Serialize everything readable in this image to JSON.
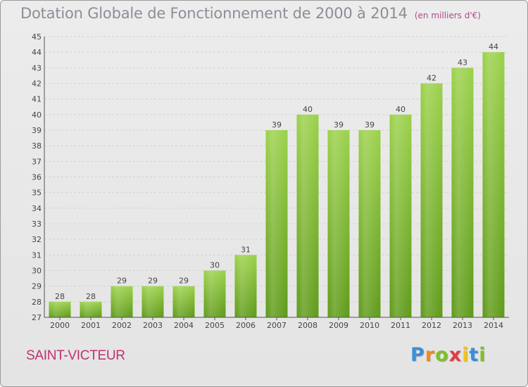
{
  "chart_data": {
    "type": "bar",
    "title": "Dotation Globale de Fonctionnement de 2000 à 2014",
    "subtitle": "(en milliers d'€)",
    "categories": [
      "2000",
      "2001",
      "2002",
      "2003",
      "2004",
      "2005",
      "2006",
      "2007",
      "2008",
      "2009",
      "2010",
      "2011",
      "2012",
      "2013",
      "2014"
    ],
    "values": [
      28,
      28,
      29,
      29,
      29,
      30,
      31,
      39,
      40,
      39,
      39,
      40,
      42,
      43,
      44
    ],
    "xlabel": "",
    "ylabel": "",
    "ylim": [
      27,
      45
    ],
    "yticks": [
      27,
      28,
      29,
      30,
      31,
      32,
      33,
      34,
      35,
      36,
      37,
      38,
      39,
      40,
      41,
      42,
      43,
      44,
      45
    ],
    "grid": true,
    "bar_color": "#7cb830"
  },
  "location": "SAINT-VICTEUR",
  "brand": {
    "letters": [
      "P",
      "r",
      "o",
      "x",
      "i",
      "t",
      "i"
    ],
    "colors": [
      "#3b8fd6",
      "#f08a1c",
      "#7fbf2a",
      "#e23d3d",
      "#f0c419",
      "#3b8fd6",
      "#7fbf2a"
    ]
  }
}
